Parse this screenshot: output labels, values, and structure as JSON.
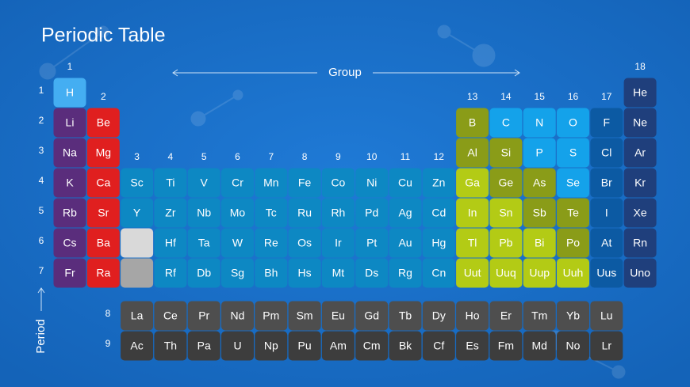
{
  "title": "Periodic Table",
  "group_label": "Group",
  "period_label": "Period",
  "groups": [
    "1",
    "2",
    "3",
    "4",
    "5",
    "6",
    "7",
    "8",
    "9",
    "10",
    "11",
    "12",
    "13",
    "14",
    "15",
    "16",
    "17",
    "18"
  ],
  "periods": [
    "1",
    "2",
    "3",
    "4",
    "5",
    "6",
    "7",
    "8",
    "9"
  ],
  "table": {
    "rows": [
      [
        "H",
        null,
        null,
        null,
        null,
        null,
        null,
        null,
        null,
        null,
        null,
        null,
        null,
        null,
        null,
        null,
        null,
        "He"
      ],
      [
        "Li",
        "Be",
        null,
        null,
        null,
        null,
        null,
        null,
        null,
        null,
        null,
        null,
        "B",
        "C",
        "N",
        "O",
        "F",
        "Ne"
      ],
      [
        "Na",
        "Mg",
        null,
        null,
        null,
        null,
        null,
        null,
        null,
        null,
        null,
        null,
        "Al",
        "Si",
        "P",
        "S",
        "Cl",
        "Ar"
      ],
      [
        "K",
        "Ca",
        "Sc",
        "Ti",
        "V",
        "Cr",
        "Mn",
        "Fe",
        "Co",
        "Ni",
        "Cu",
        "Zn",
        "Ga",
        "Ge",
        "As",
        "Se",
        "Br",
        "Kr"
      ],
      [
        "Rb",
        "Sr",
        "Y",
        "Zr",
        "Nb",
        "Mo",
        "Tc",
        "Ru",
        "Rh",
        "Pd",
        "Ag",
        "Cd",
        "In",
        "Sn",
        "Sb",
        "Te",
        "I",
        "Xe"
      ],
      [
        "Cs",
        "Ba",
        null,
        "Hf",
        "Ta",
        "W",
        "Re",
        "Os",
        "Ir",
        "Pt",
        "Au",
        "Hg",
        "Tl",
        "Pb",
        "Bi",
        "Po",
        "At",
        "Rn"
      ],
      [
        "Fr",
        "Ra",
        null,
        "Rf",
        "Db",
        "Sg",
        "Bh",
        "Hs",
        "Mt",
        "Ds",
        "Rg",
        "Cn",
        "Uut",
        "Uuq",
        "Uup",
        "Uuh",
        "Uus",
        "Uno"
      ]
    ]
  },
  "series": [
    [
      "La",
      "Ce",
      "Pr",
      "Nd",
      "Pm",
      "Sm",
      "Eu",
      "Gd",
      "Tb",
      "Dy",
      "Ho",
      "Er",
      "Tm",
      "Yb",
      "Lu"
    ],
    [
      "Ac",
      "Th",
      "Pa",
      "U",
      "Np",
      "Pu",
      "Am",
      "Cm",
      "Bk",
      "Cf",
      "Es",
      "Fm",
      "Md",
      "No",
      "Lr"
    ]
  ]
}
